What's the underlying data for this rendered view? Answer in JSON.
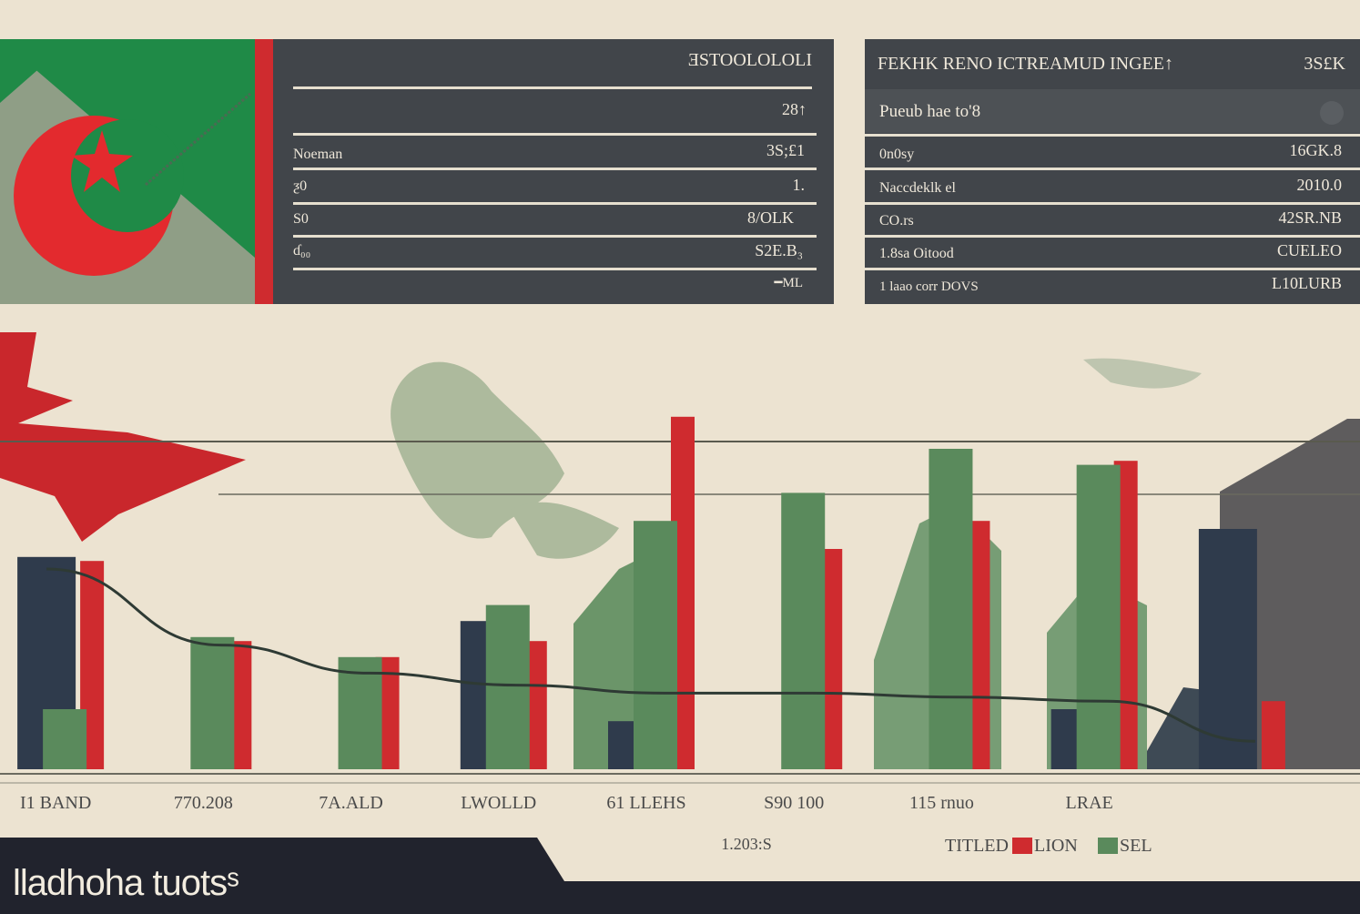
{
  "colors": {
    "background": "#ece3d1",
    "panel": "#41454a",
    "red": "#cf2b2f",
    "green": "#5a8a5c",
    "navy": "#2f3b4c",
    "gray": "#6b6b6b"
  },
  "left_panel": {
    "header": "ƎSTOOLOLOLI",
    "rows": [
      {
        "label": "",
        "value": "28↑"
      },
      {
        "label": "Noeman",
        "value": "3S;£1"
      },
      {
        "label": "ƺ0",
        "value": "1."
      },
      {
        "label": "S0",
        "value": "8/OLK"
      },
      {
        "label": "ɗ₀₀",
        "value": "S2E.B₃"
      },
      {
        "label": "",
        "value": "━ML"
      }
    ]
  },
  "right_panel": {
    "header": "FEKHK RENO ICTREAMUD INGEE↑",
    "header_value": "3S£K",
    "subheader": "Pueub hae to'8",
    "rows": [
      {
        "label": "0n0sy",
        "value": "16GK.8"
      },
      {
        "label": "Naccdeklk el",
        "value": "2010.0"
      },
      {
        "label": "CO.rs",
        "value": "42SR.NB"
      },
      {
        "label": "1.8sa Oitood",
        "value": "CUELEO"
      },
      {
        "label": "1 laao corr DOVS",
        "value": "L10LURB"
      }
    ]
  },
  "chart_data": {
    "type": "bar",
    "title": "",
    "xlabel": "",
    "ylabel": "",
    "categories": [
      "I1 BAND",
      "770.208",
      "7A.ALD",
      "LWOLLD",
      "61 LLEHS",
      "S90 100",
      "115 rnuo",
      "LRAE",
      ""
    ],
    "x_sublabel": "1.203:S",
    "ylim": [
      0,
      100
    ],
    "series": [
      {
        "name": "TITLED",
        "color": "#2f3b4c",
        "values": [
          53,
          0,
          0,
          37,
          12,
          0,
          0,
          15,
          60
        ]
      },
      {
        "name": "LION",
        "color": "#cf2b2f",
        "values": [
          52,
          32,
          28,
          32,
          88,
          55,
          62,
          77,
          17
        ]
      },
      {
        "name": "SEL",
        "color": "#5a8a5c",
        "values": [
          15,
          33,
          28,
          41,
          62,
          69,
          80,
          76,
          0
        ]
      }
    ],
    "trend_line": [
      50,
      31,
      24,
      21,
      19,
      19,
      18,
      17,
      7
    ]
  },
  "legend": {
    "items": [
      {
        "label": "TITLED",
        "color": "#ece3d1"
      },
      {
        "label": "LION",
        "color": "#cf2b2f"
      },
      {
        "label": "SEL",
        "color": "#5a8a5c"
      }
    ]
  },
  "footer": {
    "title": "lladhoha tuotsˢ"
  }
}
